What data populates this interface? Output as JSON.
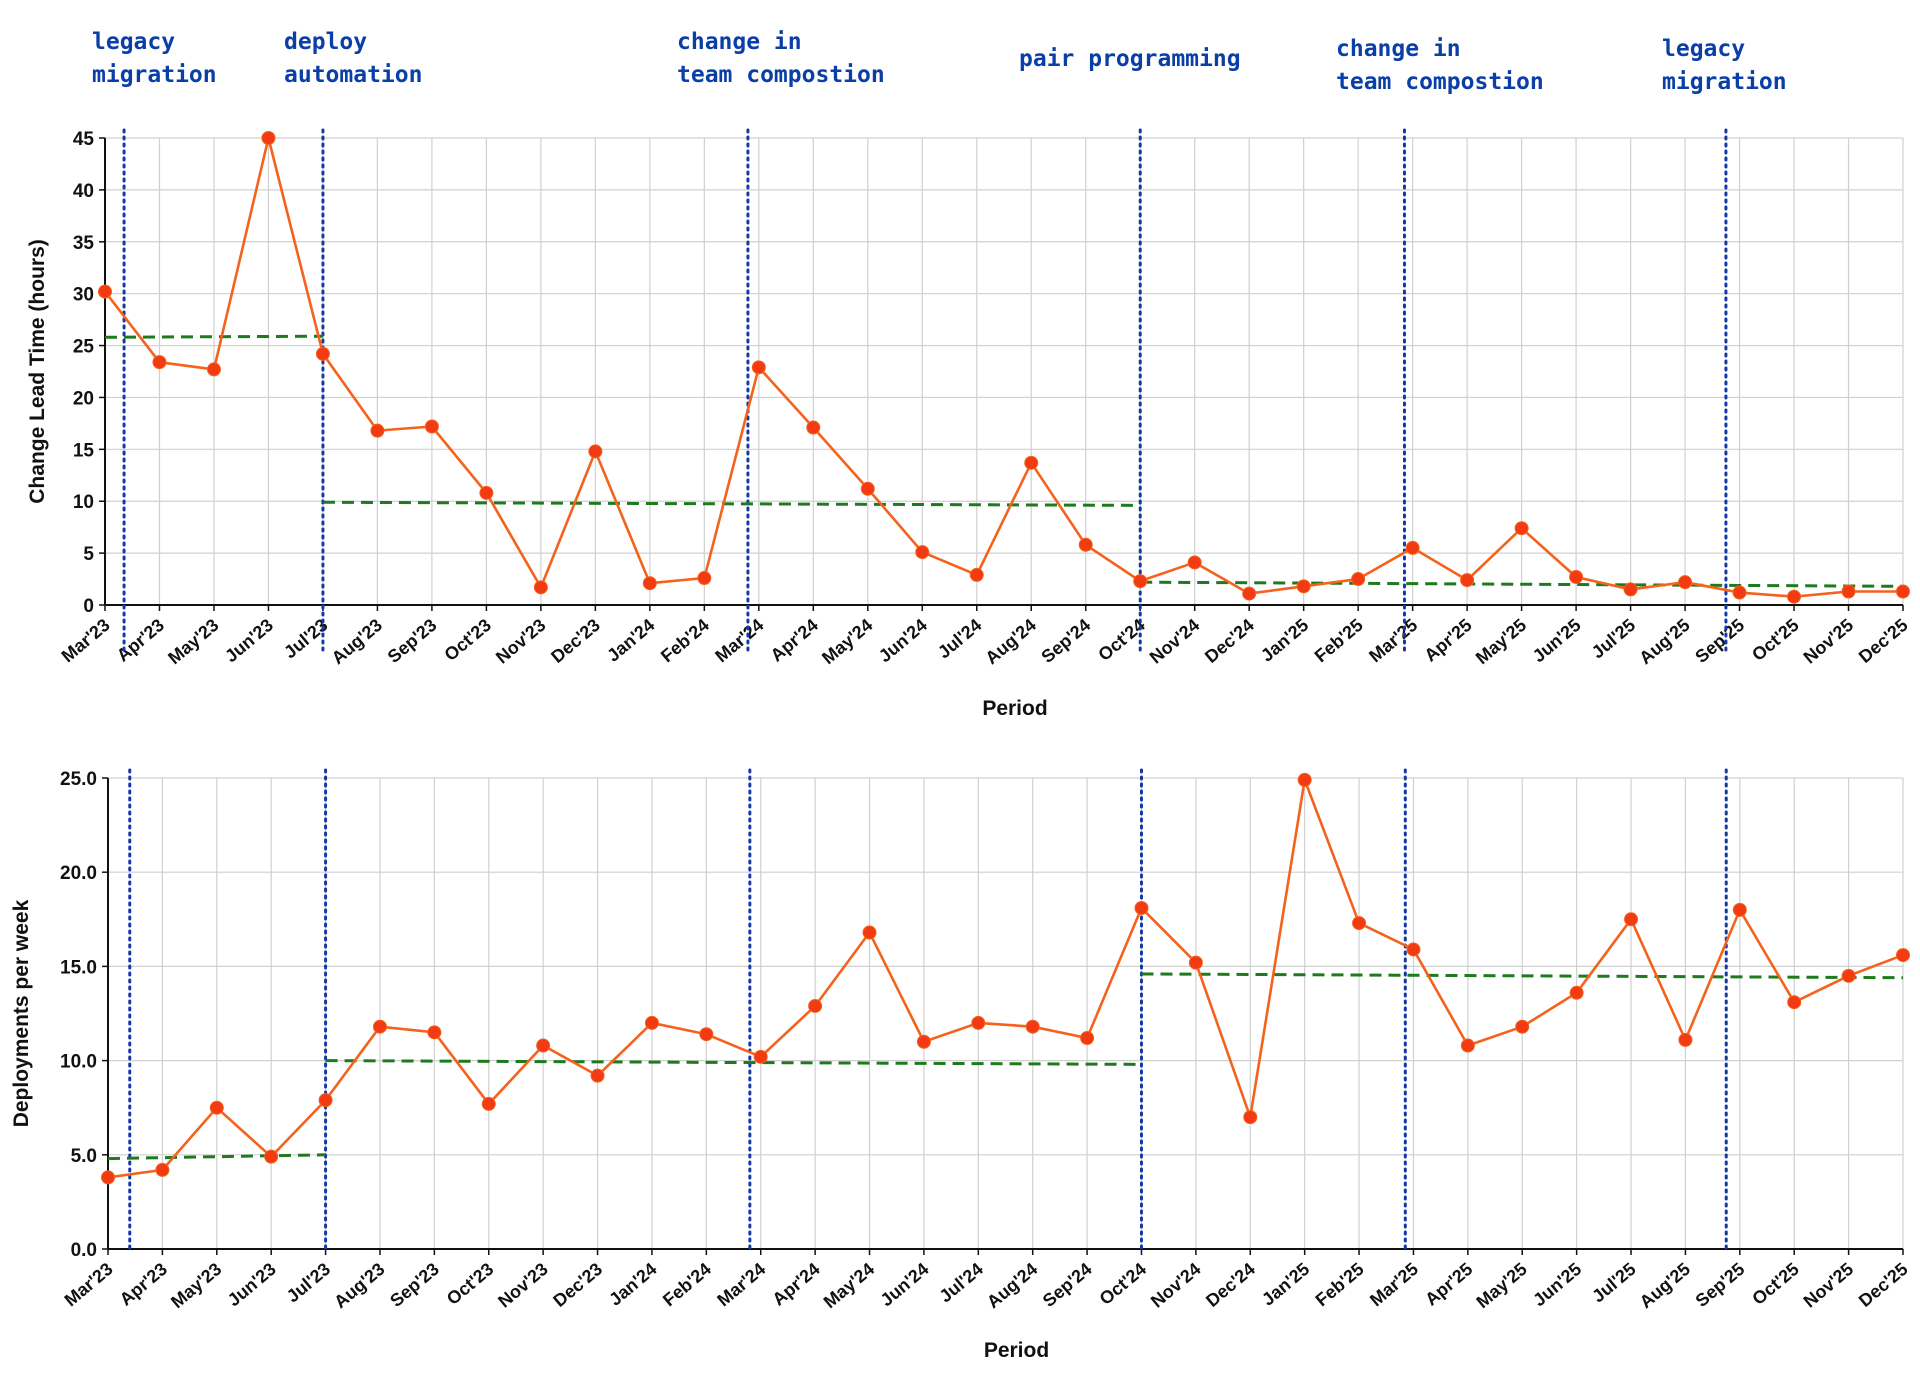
{
  "annotations": [
    {
      "lines": [
        "legacy",
        "migration"
      ]
    },
    {
      "lines": [
        "deploy",
        "automation"
      ]
    },
    {
      "lines": [
        "change in",
        "team compostion"
      ]
    },
    {
      "lines": [
        "pair programming"
      ]
    },
    {
      "lines": [
        "change in",
        "team compostion"
      ]
    },
    {
      "lines": [
        "legacy",
        "migration"
      ]
    }
  ],
  "colors": {
    "series": "#f4621c",
    "marker": "#f23b12",
    "trend": "#1d7a1d",
    "event": "#1338a8",
    "grid": "#d0d0d0",
    "axis": "#111111"
  },
  "chart_data": [
    {
      "type": "line",
      "xlabel": "Period",
      "ylabel": "Change Lead Time (hours)",
      "ylim": [
        0,
        45
      ],
      "yticks": [
        "0",
        "5",
        "10",
        "15",
        "20",
        "25",
        "30",
        "35",
        "40",
        "45"
      ],
      "categories": [
        "Mar'23",
        "Apr'23",
        "May'23",
        "Jun'23",
        "Jul'23",
        "Aug'23",
        "Sep'23",
        "Oct'23",
        "Nov'23",
        "Dec'23",
        "Jan'24",
        "Feb'24",
        "Mar'24",
        "Apr'24",
        "May'24",
        "Jun'24",
        "Jul'24",
        "Aug'24",
        "Sep'24",
        "Oct'24",
        "Nov'24",
        "Dec'24",
        "Jan'25",
        "Feb'25",
        "Mar'25",
        "Apr'25",
        "May'25",
        "Jun'25",
        "Jul'25",
        "Aug'25",
        "Sep'25",
        "Oct'25",
        "Nov'25",
        "Dec'25"
      ],
      "values": [
        30.2,
        23.4,
        22.7,
        45.0,
        24.2,
        16.8,
        17.2,
        10.8,
        1.7,
        14.8,
        2.1,
        2.6,
        22.9,
        17.1,
        11.2,
        5.1,
        2.9,
        13.7,
        5.8,
        2.3,
        4.1,
        1.1,
        1.8,
        2.5,
        5.5,
        2.4,
        7.4,
        2.7,
        1.5,
        2.2,
        1.2,
        0.8,
        1.3,
        1.3
      ],
      "trend_segments": [
        {
          "from": 0,
          "to": 4,
          "start": 25.8,
          "end": 25.9
        },
        {
          "from": 4,
          "to": 19,
          "start": 9.9,
          "end": 9.6
        },
        {
          "from": 19,
          "to": 33,
          "start": 2.2,
          "end": 1.8
        }
      ],
      "event_lines": [
        0.35,
        4.0,
        11.8,
        19.0,
        23.85,
        29.75
      ]
    },
    {
      "type": "line",
      "xlabel": "Period",
      "ylabel": "Deployments per week",
      "ylim": [
        0,
        25
      ],
      "yticks": [
        "0.0",
        "5.0",
        "10.0",
        "15.0",
        "20.0",
        "25.0"
      ],
      "categories": [
        "Mar'23",
        "Apr'23",
        "May'23",
        "Jun'23",
        "Jul'23",
        "Aug'23",
        "Sep'23",
        "Oct'23",
        "Nov'23",
        "Dec'23",
        "Jan'24",
        "Feb'24",
        "Mar'24",
        "Apr'24",
        "May'24",
        "Jun'24",
        "Jul'24",
        "Aug'24",
        "Sep'24",
        "Oct'24",
        "Nov'24",
        "Dec'24",
        "Jan'25",
        "Feb'25",
        "Mar'25",
        "Apr'25",
        "May'25",
        "Jun'25",
        "Jul'25",
        "Aug'25",
        "Sep'25",
        "Oct'25",
        "Nov'25",
        "Dec'25"
      ],
      "values": [
        3.8,
        4.2,
        7.5,
        4.9,
        7.9,
        11.8,
        11.5,
        7.7,
        10.8,
        9.2,
        12.0,
        11.4,
        10.2,
        12.9,
        16.8,
        11.0,
        12.0,
        11.8,
        11.2,
        18.1,
        15.2,
        7.0,
        24.9,
        17.3,
        15.9,
        10.8,
        11.8,
        13.6,
        17.5,
        11.1,
        18.0,
        13.1,
        14.5,
        15.6
      ],
      "trend_segments": [
        {
          "from": 0,
          "to": 4,
          "start": 4.8,
          "end": 5.0
        },
        {
          "from": 4,
          "to": 19,
          "start": 10.0,
          "end": 9.8
        },
        {
          "from": 19,
          "to": 33,
          "start": 14.6,
          "end": 14.4
        }
      ],
      "event_lines": [
        0.4,
        4.0,
        11.8,
        19.0,
        23.85,
        29.75
      ]
    }
  ]
}
